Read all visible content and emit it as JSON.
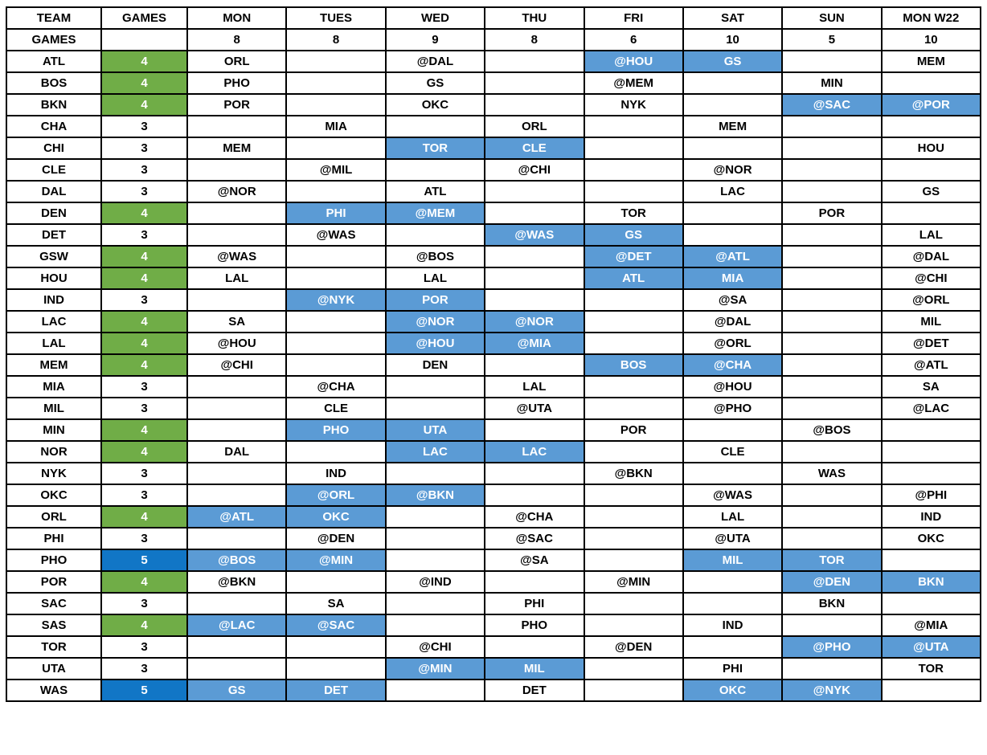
{
  "colors": {
    "green": "#70AD47",
    "lightblue": "#5B9BD5",
    "darkblue": "#1176C6",
    "border": "#000000",
    "text": "#000000",
    "highlight_text": "#FFFFFF"
  },
  "table": {
    "header": [
      "TEAM",
      "GAMES",
      "MON",
      "TUES",
      "WED",
      "THU",
      "FRI",
      "SAT",
      "SUN",
      "MON W22"
    ],
    "day_totals_label": "GAMES",
    "day_totals": [
      "8",
      "8",
      "9",
      "8",
      "6",
      "10",
      "5",
      "10"
    ],
    "rows": [
      {
        "team": "ATL",
        "games": "4",
        "games_hl": "green",
        "days": [
          "ORL",
          "",
          "@DAL",
          "",
          "@HOU",
          "GS",
          "",
          "MEM"
        ],
        "hl": [
          4,
          5
        ]
      },
      {
        "team": "BOS",
        "games": "4",
        "games_hl": "green",
        "days": [
          "PHO",
          "",
          "GS",
          "",
          "@MEM",
          "",
          "MIN",
          ""
        ],
        "hl": []
      },
      {
        "team": "BKN",
        "games": "4",
        "games_hl": "green",
        "days": [
          "POR",
          "",
          "OKC",
          "",
          "NYK",
          "",
          "@SAC",
          "@POR"
        ],
        "hl": [
          6,
          7
        ]
      },
      {
        "team": "CHA",
        "games": "3",
        "games_hl": "",
        "days": [
          "",
          "MIA",
          "",
          "ORL",
          "",
          "MEM",
          "",
          ""
        ],
        "hl": []
      },
      {
        "team": "CHI",
        "games": "3",
        "games_hl": "",
        "days": [
          "MEM",
          "",
          "TOR",
          "CLE",
          "",
          "",
          "",
          "HOU"
        ],
        "hl": [
          2,
          3
        ]
      },
      {
        "team": "CLE",
        "games": "3",
        "games_hl": "",
        "days": [
          "",
          "@MIL",
          "",
          "@CHI",
          "",
          "@NOR",
          "",
          ""
        ],
        "hl": []
      },
      {
        "team": "DAL",
        "games": "3",
        "games_hl": "",
        "days": [
          "@NOR",
          "",
          "ATL",
          "",
          "",
          "LAC",
          "",
          "GS"
        ],
        "hl": []
      },
      {
        "team": "DEN",
        "games": "4",
        "games_hl": "green",
        "days": [
          "",
          "PHI",
          "@MEM",
          "",
          "TOR",
          "",
          "POR",
          ""
        ],
        "hl": [
          1,
          2
        ]
      },
      {
        "team": "DET",
        "games": "3",
        "games_hl": "",
        "days": [
          "",
          "@WAS",
          "",
          "@WAS",
          "GS",
          "",
          "",
          "LAL"
        ],
        "hl": [
          3,
          4
        ]
      },
      {
        "team": "GSW",
        "games": "4",
        "games_hl": "green",
        "days": [
          "@WAS",
          "",
          "@BOS",
          "",
          "@DET",
          "@ATL",
          "",
          "@DAL"
        ],
        "hl": [
          4,
          5
        ]
      },
      {
        "team": "HOU",
        "games": "4",
        "games_hl": "green",
        "days": [
          "LAL",
          "",
          "LAL",
          "",
          "ATL",
          "MIA",
          "",
          "@CHI"
        ],
        "hl": [
          4,
          5
        ]
      },
      {
        "team": "IND",
        "games": "3",
        "games_hl": "",
        "days": [
          "",
          "@NYK",
          "POR",
          "",
          "",
          "@SA",
          "",
          "@ORL"
        ],
        "hl": [
          1,
          2
        ]
      },
      {
        "team": "LAC",
        "games": "4",
        "games_hl": "green",
        "days": [
          "SA",
          "",
          "@NOR",
          "@NOR",
          "",
          "@DAL",
          "",
          "MIL"
        ],
        "hl": [
          2,
          3
        ]
      },
      {
        "team": "LAL",
        "games": "4",
        "games_hl": "green",
        "days": [
          "@HOU",
          "",
          "@HOU",
          "@MIA",
          "",
          "@ORL",
          "",
          "@DET"
        ],
        "hl": [
          2,
          3
        ]
      },
      {
        "team": "MEM",
        "games": "4",
        "games_hl": "green",
        "days": [
          "@CHI",
          "",
          "DEN",
          "",
          "BOS",
          "@CHA",
          "",
          "@ATL"
        ],
        "hl": [
          4,
          5
        ]
      },
      {
        "team": "MIA",
        "games": "3",
        "games_hl": "",
        "days": [
          "",
          "@CHA",
          "",
          "LAL",
          "",
          "@HOU",
          "",
          "SA"
        ],
        "hl": []
      },
      {
        "team": "MIL",
        "games": "3",
        "games_hl": "",
        "days": [
          "",
          "CLE",
          "",
          "@UTA",
          "",
          "@PHO",
          "",
          "@LAC"
        ],
        "hl": []
      },
      {
        "team": "MIN",
        "games": "4",
        "games_hl": "green",
        "days": [
          "",
          "PHO",
          "UTA",
          "",
          "POR",
          "",
          "@BOS",
          ""
        ],
        "hl": [
          1,
          2
        ]
      },
      {
        "team": "NOR",
        "games": "4",
        "games_hl": "green",
        "days": [
          "DAL",
          "",
          "LAC",
          "LAC",
          "",
          "CLE",
          "",
          ""
        ],
        "hl": [
          2,
          3
        ]
      },
      {
        "team": "NYK",
        "games": "3",
        "games_hl": "",
        "days": [
          "",
          "IND",
          "",
          "",
          "@BKN",
          "",
          "WAS",
          ""
        ],
        "hl": []
      },
      {
        "team": "OKC",
        "games": "3",
        "games_hl": "",
        "days": [
          "",
          "@ORL",
          "@BKN",
          "",
          "",
          "@WAS",
          "",
          "@PHI"
        ],
        "hl": [
          1,
          2
        ]
      },
      {
        "team": "ORL",
        "games": "4",
        "games_hl": "green",
        "days": [
          "@ATL",
          "OKC",
          "",
          "@CHA",
          "",
          "LAL",
          "",
          "IND"
        ],
        "hl": [
          0,
          1
        ]
      },
      {
        "team": "PHI",
        "games": "3",
        "games_hl": "",
        "days": [
          "",
          "@DEN",
          "",
          "@SAC",
          "",
          "@UTA",
          "",
          "OKC"
        ],
        "hl": []
      },
      {
        "team": "PHO",
        "games": "5",
        "games_hl": "darkblue",
        "days": [
          "@BOS",
          "@MIN",
          "",
          "@SA",
          "",
          "MIL",
          "TOR",
          ""
        ],
        "hl": [
          0,
          1,
          5,
          6
        ]
      },
      {
        "team": "POR",
        "games": "4",
        "games_hl": "green",
        "days": [
          "@BKN",
          "",
          "@IND",
          "",
          "@MIN",
          "",
          "@DEN",
          "BKN"
        ],
        "hl": [
          6,
          7
        ]
      },
      {
        "team": "SAC",
        "games": "3",
        "games_hl": "",
        "days": [
          "",
          "SA",
          "",
          "PHI",
          "",
          "",
          "BKN",
          ""
        ],
        "hl": []
      },
      {
        "team": "SAS",
        "games": "4",
        "games_hl": "green",
        "days": [
          "@LAC",
          "@SAC",
          "",
          "PHO",
          "",
          "IND",
          "",
          "@MIA"
        ],
        "hl": [
          0,
          1
        ]
      },
      {
        "team": "TOR",
        "games": "3",
        "games_hl": "",
        "days": [
          "",
          "",
          "@CHI",
          "",
          "@DEN",
          "",
          "@PHO",
          "@UTA"
        ],
        "hl": [
          6,
          7
        ]
      },
      {
        "team": "UTA",
        "games": "3",
        "games_hl": "",
        "days": [
          "",
          "",
          "@MIN",
          "MIL",
          "",
          "PHI",
          "",
          "TOR"
        ],
        "hl": [
          2,
          3
        ]
      },
      {
        "team": "WAS",
        "games": "5",
        "games_hl": "darkblue",
        "days": [
          "GS",
          "DET",
          "",
          "DET",
          "",
          "OKC",
          "@NYK",
          ""
        ],
        "hl": [
          0,
          1,
          5,
          6
        ]
      }
    ]
  }
}
